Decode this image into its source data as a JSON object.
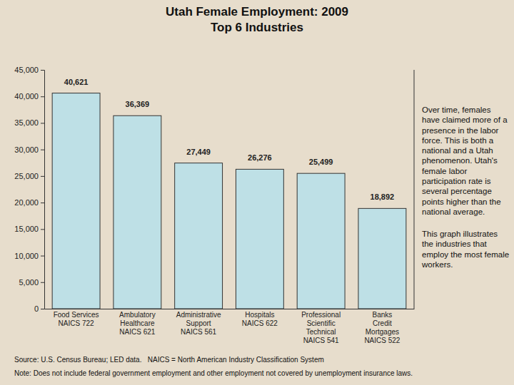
{
  "chart_data": {
    "type": "bar",
    "title": "Utah Female Employment: 2009",
    "subtitle": "Top 6 Industries",
    "categories": [
      "Food Services\nNAICS 722",
      "Ambulatory\nHealthcare\nNAICS 621",
      "Administrative\nSupport\nNAICS 561",
      "Hospitals\nNAICS 622",
      "Professional\nScientific\nTechnical\nNAICS 541",
      "Banks\nCredit\nMortgages\nNAICS 522"
    ],
    "values": [
      40621,
      36369,
      27449,
      26276,
      25499,
      18892
    ],
    "value_labels": [
      "40,621",
      "36,369",
      "27,449",
      "26,276",
      "25,499",
      "18,892"
    ],
    "color": "#bee0e6",
    "data_labels": true,
    "grid": false,
    "ylim": [
      0,
      45000
    ],
    "yticks": [
      0,
      {
        "value": 5000,
        "label": "5,000"
      },
      {
        "value": 10000,
        "label": "10,000"
      },
      {
        "value": 15000,
        "label": "15,000"
      },
      {
        "value": 20000,
        "label": "20,000"
      },
      {
        "value": 25000,
        "label": "25,000"
      },
      {
        "value": 30000,
        "label": "30,000"
      },
      {
        "value": 35000,
        "label": "35,000"
      },
      {
        "value": 40000,
        "label": "40,000"
      },
      {
        "value": 45000,
        "label": "45,000"
      }
    ],
    "annotations": [
      "Over time, females have claimed more of a presence in the labor force. This is both a national and a Utah phenomenon. Utah's female labor participation rate is several percentage points higher than the national average.",
      "This graph illustrates the industries that employ the most female workers."
    ],
    "source": "Source: U.S. Census Bureau; LED data.   NAICS = North American Industry Classification System",
    "note": "Note: Does not include federal government employment and other employment not covered by unemployment insurance laws."
  }
}
